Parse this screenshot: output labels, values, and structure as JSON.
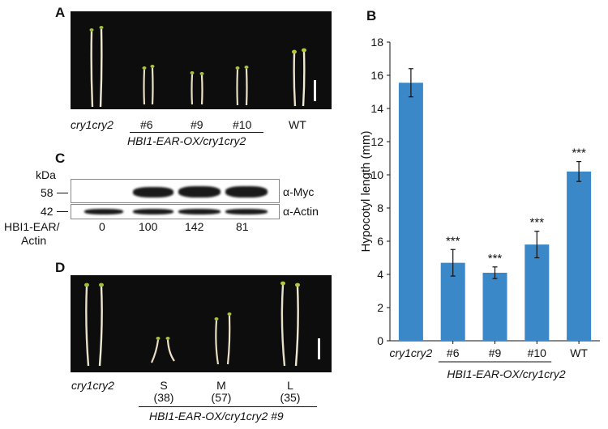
{
  "panels": {
    "A": {
      "letter": "A",
      "genotypes": [
        "cry1cry2",
        "#6",
        "#9",
        "#10",
        "WT"
      ],
      "group_label": "HBI1-EAR-OX/cry1cry2"
    },
    "C": {
      "letter": "C",
      "kda_label": "kDa",
      "marker_58": "58",
      "marker_42": "42",
      "myc_label": "α-Myc",
      "actin_label": "α-Actin",
      "ratio_label_line1": "HBI1-EAR/",
      "ratio_label_line2": "Actin",
      "ratios": [
        "0",
        "100",
        "142",
        "81"
      ]
    },
    "D": {
      "letter": "D",
      "genotype": "cry1cry2",
      "classes": [
        {
          "name": "S",
          "count": "(38)"
        },
        {
          "name": "M",
          "count": "(57)"
        },
        {
          "name": "L",
          "count": "(35)"
        }
      ],
      "group_label": "HBI1-EAR-OX/cry1cry2 #9"
    },
    "B": {
      "letter": "B"
    }
  },
  "chart_data": {
    "type": "bar",
    "categories": [
      "cry1cry2",
      "#6",
      "#9",
      "#10",
      "WT"
    ],
    "values": [
      15.55,
      4.7,
      4.1,
      5.8,
      10.2
    ],
    "errors": [
      0.85,
      0.8,
      0.35,
      0.8,
      0.6
    ],
    "significance": [
      "",
      "***",
      "***",
      "***",
      "***"
    ],
    "ylabel": "Hypocotyl length (mm)",
    "ylim": [
      0,
      18
    ],
    "yticks": [
      "0",
      "2",
      "4",
      "6",
      "8",
      "10",
      "12",
      "14",
      "16",
      "18"
    ],
    "group_label": "HBI1-EAR-OX/cry1cry2",
    "bar_color": "#3a88c8"
  }
}
